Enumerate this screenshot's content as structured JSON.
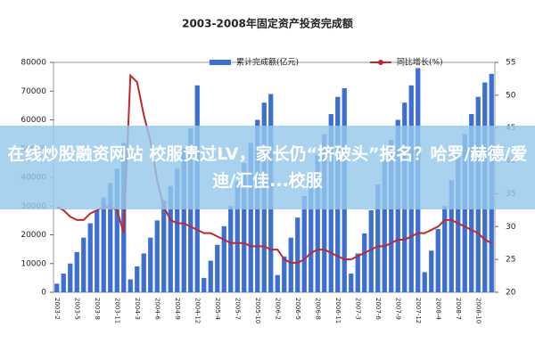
{
  "chart_data": {
    "type": "bar-line",
    "title": "2003-2008年固定资产投资完成额",
    "categories": [
      "2003-2",
      null,
      null,
      "2003-5",
      null,
      null,
      "2003-8",
      null,
      null,
      "2003-11",
      null,
      null,
      "2004-3",
      null,
      null,
      "2004-6",
      null,
      null,
      "2004-9",
      null,
      null,
      "2004-12",
      null,
      null,
      "2005-4",
      null,
      null,
      "2005-7",
      null,
      null,
      "2005-10",
      null,
      null,
      "2006-2",
      null,
      null,
      "2006-5",
      null,
      null,
      "2006-8",
      null,
      null,
      "2006-11",
      null,
      null,
      "2007-3",
      null,
      null,
      "2007-6",
      null,
      null,
      "2007-9",
      null,
      null,
      "2007-12",
      null,
      null,
      "2008-4",
      null,
      null,
      "2008-7",
      null,
      null,
      "2008-10",
      null,
      null
    ],
    "series": [
      {
        "name": "累计完成额(亿元)",
        "color": "#3d6fd1",
        "axis": "y",
        "values": [
          3000,
          6500,
          10000,
          14000,
          19000,
          24000,
          28500,
          33000,
          38000,
          43000,
          52000,
          4500,
          9000,
          13500,
          19000,
          25000,
          32000,
          37000,
          43000,
          50000,
          57000,
          72000,
          5000,
          11000,
          16500,
          23000,
          30000,
          38500,
          45000,
          52000,
          60000,
          66000,
          69000,
          6000,
          12500,
          19000,
          26000,
          33500,
          41000,
          48000,
          55000,
          62000,
          68000,
          71000,
          6500,
          13500,
          20500,
          28500,
          37500,
          46000,
          53000,
          60000,
          66000,
          72000,
          78000,
          7000,
          14500,
          22000,
          30000,
          39000,
          48000,
          55000,
          62000,
          68000,
          73000,
          76000
        ]
      },
      {
        "name": "同比增长(%)",
        "color": "#c0282d",
        "axis": "y2",
        "values": [
          33,
          32.5,
          31.5,
          31,
          31,
          32,
          32.5,
          33,
          33,
          32.5,
          29,
          53,
          52,
          47,
          43,
          37,
          33,
          31,
          30.5,
          30.5,
          30,
          29.5,
          29,
          29,
          28.5,
          28,
          27.5,
          27.5,
          27.5,
          27,
          27,
          27,
          26.5,
          26.5,
          25,
          24.5,
          24.5,
          25,
          26,
          26.5,
          26.5,
          26,
          25.5,
          25,
          25,
          25.5,
          26,
          26.5,
          27,
          27,
          27.5,
          28,
          28,
          28.5,
          29,
          29,
          29.5,
          30,
          31,
          31,
          30.5,
          30,
          29.5,
          29,
          28,
          27.5
        ]
      }
    ],
    "ylim": [
      0,
      80000
    ],
    "yticks": [
      0,
      10000,
      20000,
      30000,
      40000,
      50000,
      60000,
      70000,
      80000
    ],
    "y2lim": [
      20,
      55
    ],
    "y2ticks": [
      20,
      25,
      30,
      35,
      40,
      45,
      50,
      55
    ]
  },
  "banner": {
    "text": "在线炒股融资网站 校服贵过LV，家长仍“挤破头”报名？哈罗/赫德/爱迪/汇佳...校服"
  }
}
